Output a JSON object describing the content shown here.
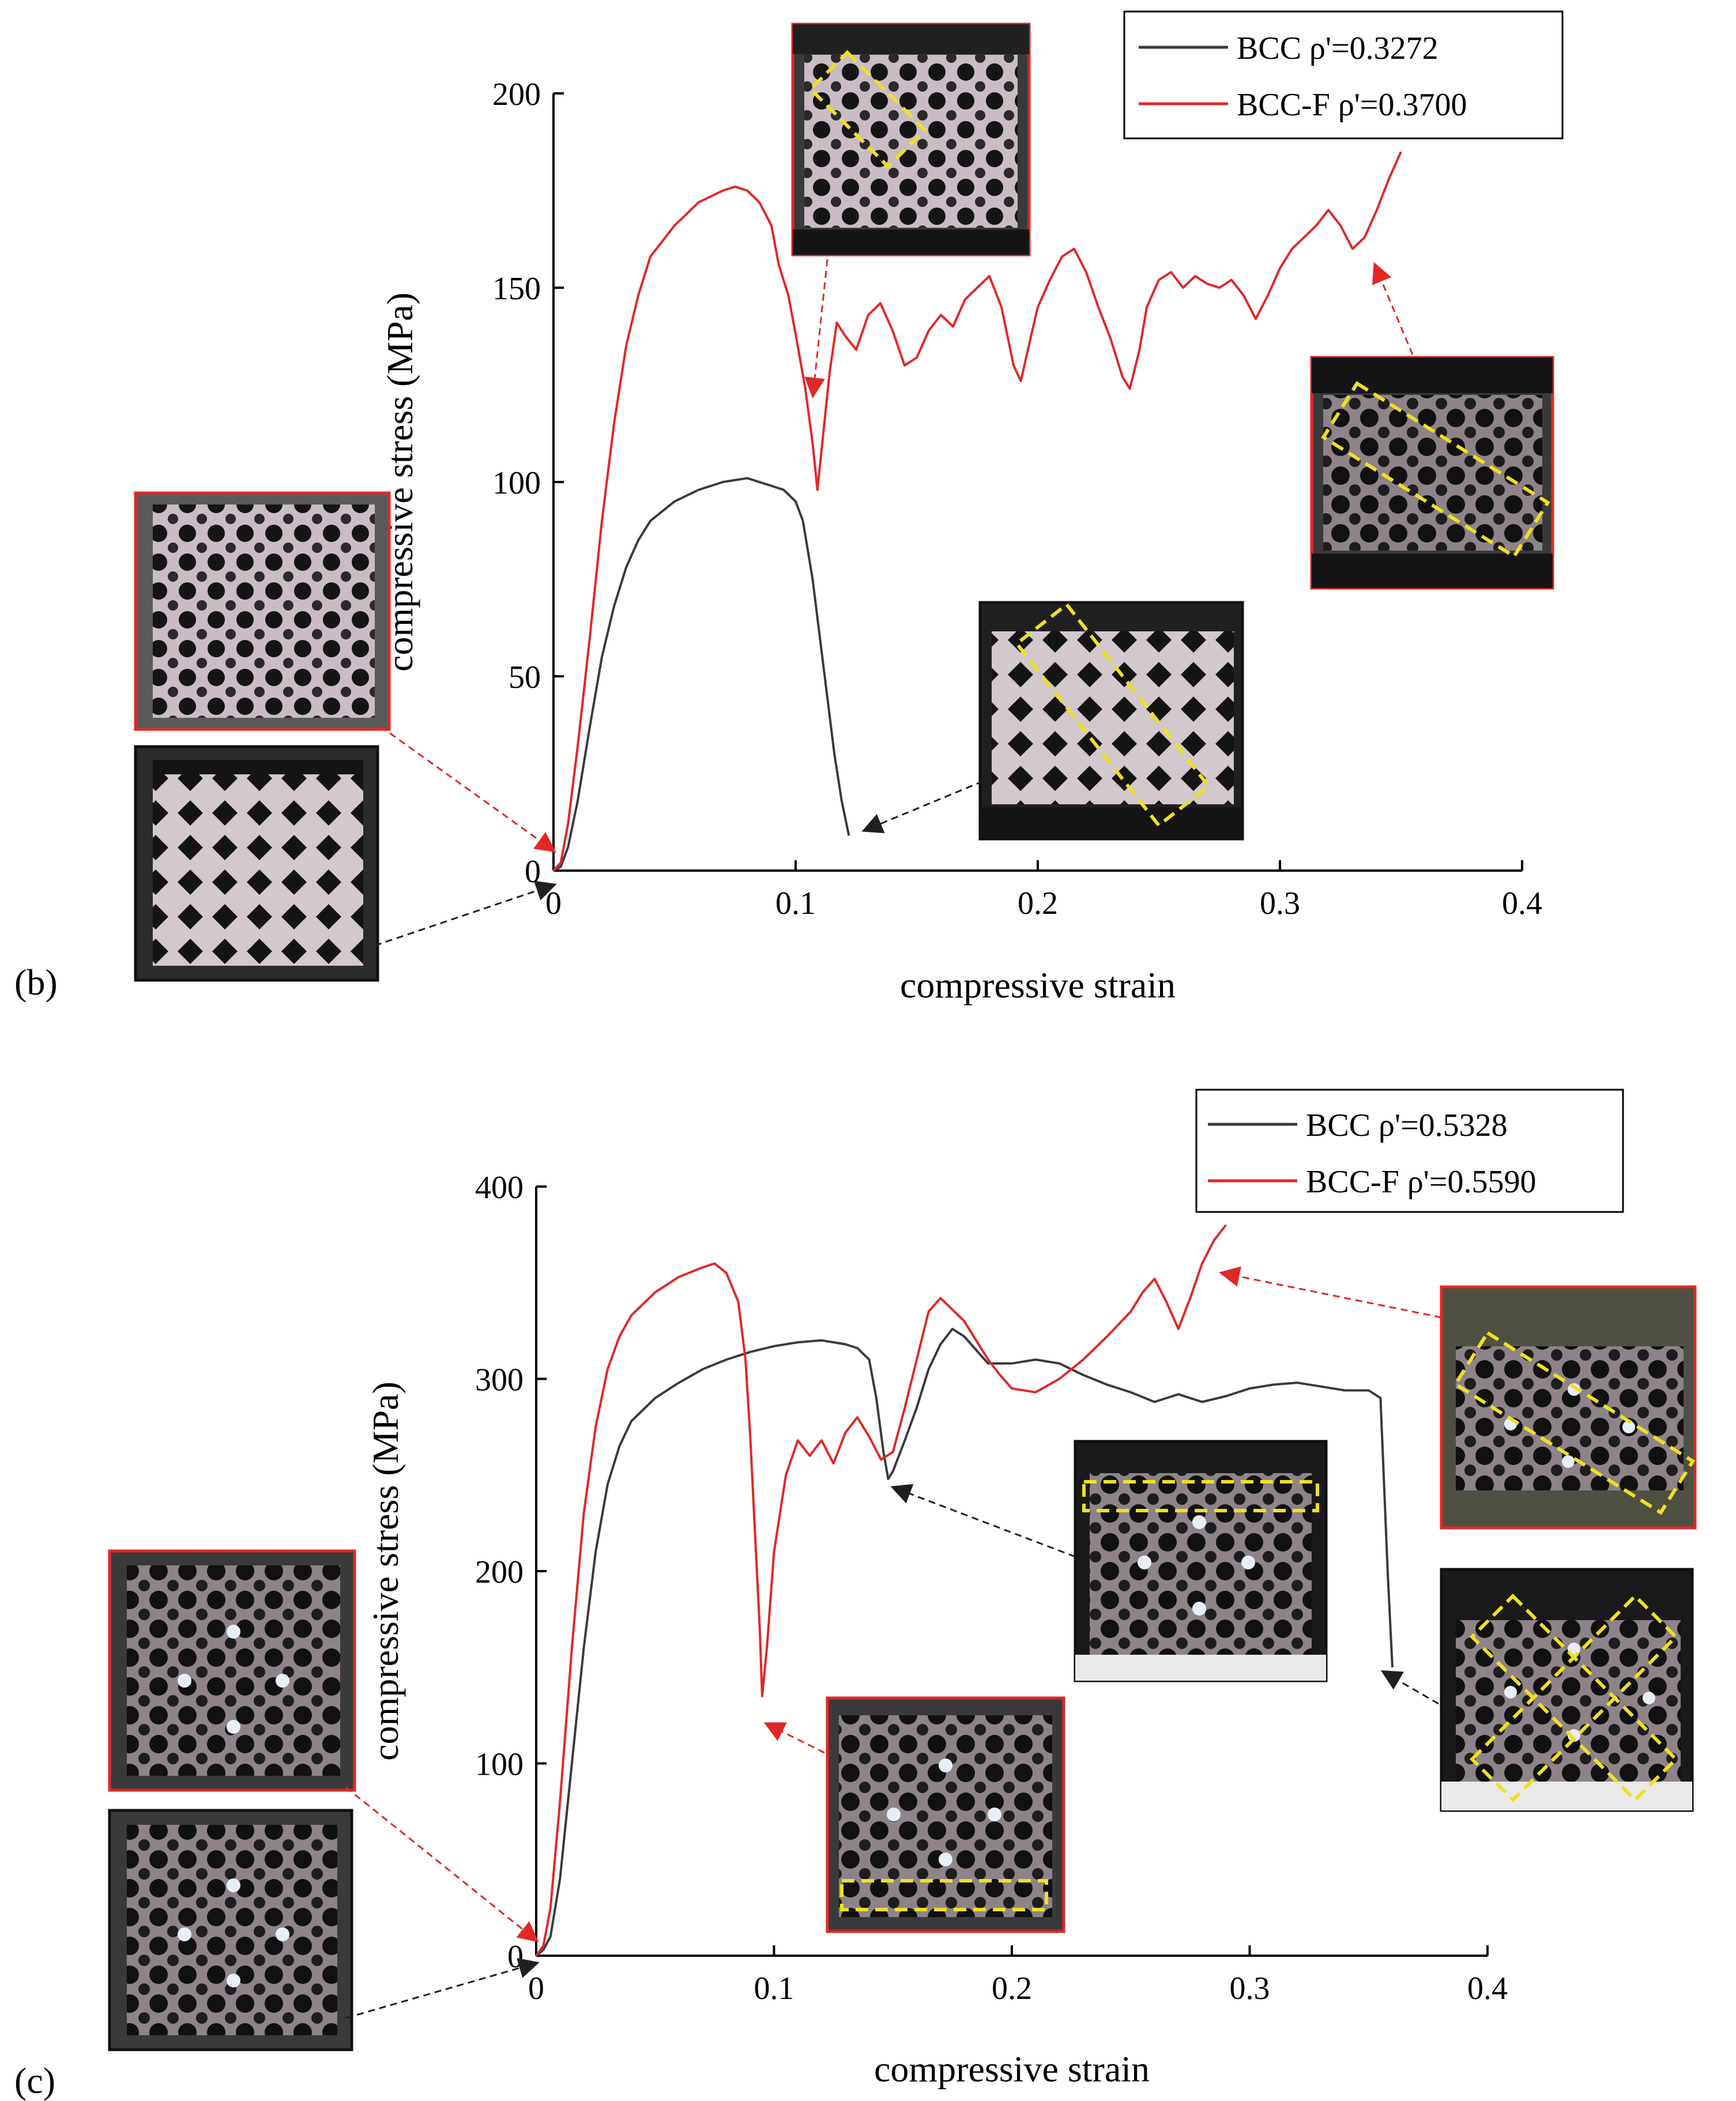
{
  "chart_data": [
    {
      "panel_label": "(b)",
      "type": "line",
      "xlabel": "compressive strain",
      "ylabel": "compressive stress (MPa)",
      "xlim": [
        0,
        0.4
      ],
      "ylim": [
        0,
        200
      ],
      "xticks": [
        "0",
        "0.1",
        "0.2",
        "0.3",
        "0.4"
      ],
      "yticks": [
        "0",
        "50",
        "100",
        "150",
        "200"
      ],
      "legend_position": "top-right",
      "colors": {
        "BCC": "#3a3a3a",
        "BCC-F": "#e02828",
        "red_arrow": "#e02828",
        "black_arrow": "#202020",
        "highlight": "#f0e020"
      },
      "series": [
        {
          "name": "BCC ρ'=0.3272",
          "color": "#3a3a3a",
          "points": [
            [
              0,
              0
            ],
            [
              0.003,
              1
            ],
            [
              0.006,
              6
            ],
            [
              0.01,
              18
            ],
            [
              0.015,
              37
            ],
            [
              0.02,
              55
            ],
            [
              0.025,
              68
            ],
            [
              0.03,
              78
            ],
            [
              0.035,
              85
            ],
            [
              0.04,
              90
            ],
            [
              0.05,
              95
            ],
            [
              0.06,
              98
            ],
            [
              0.07,
              100
            ],
            [
              0.08,
              101
            ],
            [
              0.085,
              100
            ],
            [
              0.09,
              99
            ],
            [
              0.095,
              98
            ],
            [
              0.1,
              95
            ],
            [
              0.103,
              90
            ],
            [
              0.107,
              75
            ],
            [
              0.11,
              60
            ],
            [
              0.113,
              45
            ],
            [
              0.116,
              30
            ],
            [
              0.119,
              18
            ],
            [
              0.122,
              9
            ]
          ]
        },
        {
          "name": "BCC-F ρ'=0.3700",
          "color": "#e02828",
          "points": [
            [
              0,
              0
            ],
            [
              0.003,
              2
            ],
            [
              0.006,
              12
            ],
            [
              0.01,
              32
            ],
            [
              0.015,
              60
            ],
            [
              0.02,
              90
            ],
            [
              0.025,
              115
            ],
            [
              0.03,
              135
            ],
            [
              0.035,
              148
            ],
            [
              0.04,
              158
            ],
            [
              0.05,
              166
            ],
            [
              0.06,
              172
            ],
            [
              0.07,
              175
            ],
            [
              0.075,
              176
            ],
            [
              0.08,
              175
            ],
            [
              0.085,
              172
            ],
            [
              0.09,
              166
            ],
            [
              0.093,
              156
            ],
            [
              0.097,
              148
            ],
            [
              0.1,
              138
            ],
            [
              0.104,
              124
            ],
            [
              0.107,
              110
            ],
            [
              0.109,
              98
            ],
            [
              0.111,
              110
            ],
            [
              0.114,
              128
            ],
            [
              0.117,
              141
            ],
            [
              0.12,
              138
            ],
            [
              0.125,
              134
            ],
            [
              0.13,
              143
            ],
            [
              0.135,
              146
            ],
            [
              0.14,
              139
            ],
            [
              0.145,
              130
            ],
            [
              0.15,
              132
            ],
            [
              0.155,
              139
            ],
            [
              0.16,
              143
            ],
            [
              0.165,
              140
            ],
            [
              0.17,
              147
            ],
            [
              0.175,
              150
            ],
            [
              0.18,
              153
            ],
            [
              0.185,
              145
            ],
            [
              0.19,
              130
            ],
            [
              0.193,
              126
            ],
            [
              0.197,
              137
            ],
            [
              0.2,
              145
            ],
            [
              0.205,
              152
            ],
            [
              0.21,
              158
            ],
            [
              0.215,
              160
            ],
            [
              0.22,
              154
            ],
            [
              0.225,
              145
            ],
            [
              0.23,
              137
            ],
            [
              0.235,
              127
            ],
            [
              0.238,
              124
            ],
            [
              0.242,
              134
            ],
            [
              0.245,
              145
            ],
            [
              0.25,
              152
            ],
            [
              0.255,
              154
            ],
            [
              0.26,
              150
            ],
            [
              0.265,
              153
            ],
            [
              0.27,
              151
            ],
            [
              0.275,
              150
            ],
            [
              0.28,
              152
            ],
            [
              0.285,
              148
            ],
            [
              0.29,
              142
            ],
            [
              0.295,
              148
            ],
            [
              0.3,
              155
            ],
            [
              0.305,
              160
            ],
            [
              0.31,
              163
            ],
            [
              0.315,
              166
            ],
            [
              0.32,
              170
            ],
            [
              0.325,
              166
            ],
            [
              0.33,
              160
            ],
            [
              0.335,
              163
            ],
            [
              0.34,
              170
            ],
            [
              0.345,
              178
            ],
            [
              0.35,
              185
            ]
          ]
        }
      ]
    },
    {
      "panel_label": "(c)",
      "type": "line",
      "xlabel": "compressive strain",
      "ylabel": "compressive stress (MPa)",
      "xlim": [
        0,
        0.4
      ],
      "ylim": [
        0,
        400
      ],
      "xticks": [
        "0",
        "0.1",
        "0.2",
        "0.3",
        "0.4"
      ],
      "yticks": [
        "0",
        "100",
        "200",
        "300",
        "400"
      ],
      "legend_position": "top-right",
      "colors": {
        "BCC": "#3a3a3a",
        "BCC-F": "#e02828",
        "red_arrow": "#e02828",
        "black_arrow": "#202020",
        "highlight": "#f0e020"
      },
      "series": [
        {
          "name": "BCC ρ'=0.5328",
          "color": "#3a3a3a",
          "points": [
            [
              0,
              0
            ],
            [
              0.003,
              3
            ],
            [
              0.006,
              10
            ],
            [
              0.01,
              40
            ],
            [
              0.015,
              100
            ],
            [
              0.02,
              160
            ],
            [
              0.025,
              210
            ],
            [
              0.03,
              245
            ],
            [
              0.035,
              265
            ],
            [
              0.04,
              278
            ],
            [
              0.05,
              290
            ],
            [
              0.06,
              298
            ],
            [
              0.07,
              305
            ],
            [
              0.08,
              310
            ],
            [
              0.09,
              314
            ],
            [
              0.1,
              317
            ],
            [
              0.11,
              319
            ],
            [
              0.12,
              320
            ],
            [
              0.13,
              318
            ],
            [
              0.135,
              316
            ],
            [
              0.14,
              310
            ],
            [
              0.143,
              290
            ],
            [
              0.146,
              262
            ],
            [
              0.148,
              248
            ],
            [
              0.15,
              252
            ],
            [
              0.155,
              268
            ],
            [
              0.16,
              285
            ],
            [
              0.165,
              305
            ],
            [
              0.17,
              318
            ],
            [
              0.175,
              326
            ],
            [
              0.18,
              322
            ],
            [
              0.185,
              315
            ],
            [
              0.19,
              308
            ],
            [
              0.2,
              308
            ],
            [
              0.21,
              310
            ],
            [
              0.22,
              308
            ],
            [
              0.23,
              302
            ],
            [
              0.24,
              297
            ],
            [
              0.25,
              293
            ],
            [
              0.26,
              288
            ],
            [
              0.27,
              292
            ],
            [
              0.28,
              288
            ],
            [
              0.29,
              291
            ],
            [
              0.3,
              295
            ],
            [
              0.31,
              297
            ],
            [
              0.32,
              298
            ],
            [
              0.33,
              296
            ],
            [
              0.34,
              294
            ],
            [
              0.35,
              294
            ],
            [
              0.355,
              290
            ],
            [
              0.358,
              200
            ],
            [
              0.36,
              150
            ]
          ]
        },
        {
          "name": "BCC-F ρ'=0.5590",
          "color": "#e02828",
          "points": [
            [
              0,
              0
            ],
            [
              0.003,
              5
            ],
            [
              0.006,
              25
            ],
            [
              0.01,
              80
            ],
            [
              0.015,
              160
            ],
            [
              0.02,
              230
            ],
            [
              0.025,
              275
            ],
            [
              0.03,
              305
            ],
            [
              0.035,
              322
            ],
            [
              0.04,
              333
            ],
            [
              0.05,
              345
            ],
            [
              0.06,
              353
            ],
            [
              0.07,
              358
            ],
            [
              0.075,
              360
            ],
            [
              0.08,
              355
            ],
            [
              0.085,
              340
            ],
            [
              0.088,
              310
            ],
            [
              0.09,
              270
            ],
            [
              0.092,
              220
            ],
            [
              0.094,
              170
            ],
            [
              0.095,
              135
            ],
            [
              0.097,
              160
            ],
            [
              0.1,
              210
            ],
            [
              0.105,
              250
            ],
            [
              0.11,
              268
            ],
            [
              0.115,
              260
            ],
            [
              0.12,
              268
            ],
            [
              0.125,
              256
            ],
            [
              0.13,
              272
            ],
            [
              0.135,
              280
            ],
            [
              0.14,
              270
            ],
            [
              0.145,
              258
            ],
            [
              0.15,
              262
            ],
            [
              0.155,
              285
            ],
            [
              0.16,
              310
            ],
            [
              0.165,
              335
            ],
            [
              0.17,
              342
            ],
            [
              0.175,
              336
            ],
            [
              0.18,
              330
            ],
            [
              0.185,
              320
            ],
            [
              0.19,
              310
            ],
            [
              0.195,
              302
            ],
            [
              0.2,
              295
            ],
            [
              0.21,
              293
            ],
            [
              0.22,
              300
            ],
            [
              0.23,
              310
            ],
            [
              0.24,
              322
            ],
            [
              0.25,
              335
            ],
            [
              0.255,
              345
            ],
            [
              0.26,
              352
            ],
            [
              0.265,
              340
            ],
            [
              0.27,
              326
            ],
            [
              0.275,
              342
            ],
            [
              0.28,
              360
            ],
            [
              0.285,
              372
            ],
            [
              0.29,
              380
            ]
          ]
        }
      ]
    }
  ]
}
